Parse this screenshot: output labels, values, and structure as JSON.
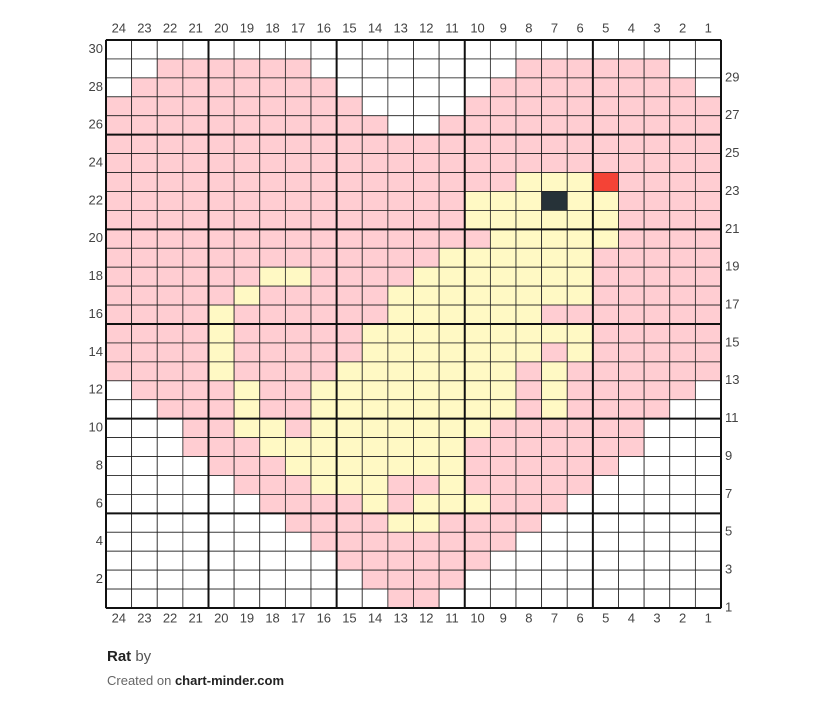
{
  "chart": {
    "columns": [
      24,
      23,
      22,
      21,
      20,
      19,
      18,
      17,
      16,
      15,
      14,
      13,
      12,
      11,
      10,
      9,
      8,
      7,
      6,
      5,
      4,
      3,
      2,
      1
    ],
    "rows": [
      30,
      29,
      28,
      27,
      26,
      25,
      24,
      23,
      22,
      21,
      20,
      19,
      18,
      17,
      16,
      15,
      14,
      13,
      12,
      11,
      10,
      9,
      8,
      7,
      6,
      5,
      4,
      3,
      2,
      1
    ],
    "palette": {
      "W": "#ffffff",
      "P": "#ffcdd2",
      "Y": "#fff9c4",
      "B": "#263238",
      "R": "#f44336"
    },
    "grid": [
      "WWWWWWWWWWWWWWWWWWWWWWWW",
      "WWPPPPPPWWWWWWWWPPPPPPWW",
      "WPPPPPPPPWWWWWWPPPPPPPPW",
      "PPPPPPPPPPWWWWPPPPPPPPPP",
      "PPPPPPPPPPPWWPPPPPPPPPPP",
      "PPPPPPPPPPPPPPPPPPPPPPPP",
      "PPPPPPPPPPPPPPPPPPPPPPPP",
      "PPPPPPPPPPPPPPPPYYYRPPPP",
      "PPPPPPPPPPPPPPYYYBYYPPPP",
      "PPPPPPPPPPPPPPYYYYYYPPPP",
      "PPPPPPPPPPPPPPPYYYYYPPPP",
      "PPPPPPPPPPPPPYYYYYYPPPPP",
      "PPPPPPYYPPPPYYYYYYYPPPPP",
      "PPPPPYPPPPPYYYYYYYYPPPPP",
      "PPPPYPPPPPPYYYYYYPPPPPPP",
      "PPPPYPPPPPYYYYYYYYYPPPPP",
      "PPPPYPPPPPYYYYYYYPYPPPPP",
      "PPPPYPPPPYYYYYYYPYPPPPPP",
      "WPPPPYPPYYYYYYYYPYPPPPPW",
      "WWPPPYPPYYYYYYYYPYPPPPWW",
      "WWWPPYYPYYYYYYYPPPPPPWWW",
      "WWWPPPYYYYYYYYPPPPPPPWWW",
      "WWWWPPPYYYYYYYPPPPPPWWWW",
      "WWWWWPPPYYYPPYPPPPPWWWWW",
      "WWWWWWPPPPYPYYYPPPWWWWWW",
      "WWWWWWWPPPPYYPPPPWWWWWWW",
      "WWWWWWWWPPPPPPPPWWWWWWWW",
      "WWWWWWWWWPPPPPPWWWWWWWWW",
      "WWWWWWWWWWPPPPWWWWWWWWWW",
      "WWWWWWWWWWWPPWWWWWWWWWWW"
    ]
  },
  "footer": {
    "title": "Rat",
    "by": "by",
    "created_on": "Created on",
    "site": "chart-minder.com"
  }
}
